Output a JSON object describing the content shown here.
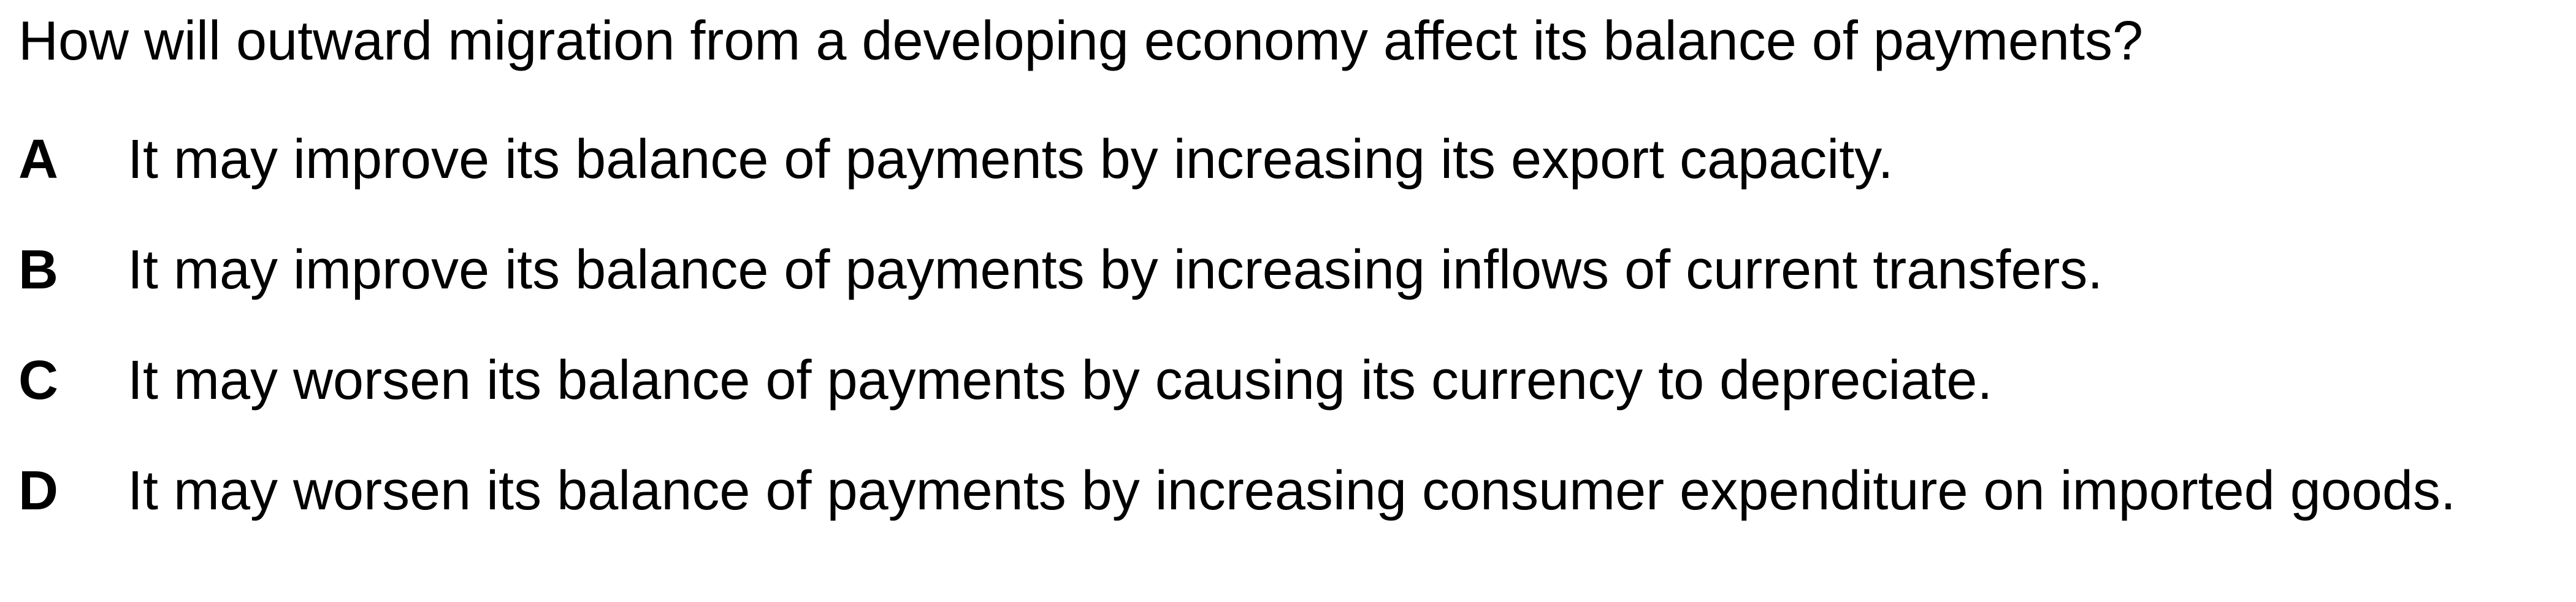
{
  "question": "How will outward migration from a developing economy affect its balance of payments?",
  "options": [
    {
      "letter": "A",
      "text": "It may improve its balance of payments by increasing its export capacity."
    },
    {
      "letter": "B",
      "text": "It may improve its balance of payments by increasing inflows of current transfers."
    },
    {
      "letter": "C",
      "text": "It may worsen its balance of payments by causing its currency to depreciate."
    },
    {
      "letter": "D",
      "text": "It may worsen its balance of payments by increasing consumer expenditure on imported goods."
    }
  ]
}
